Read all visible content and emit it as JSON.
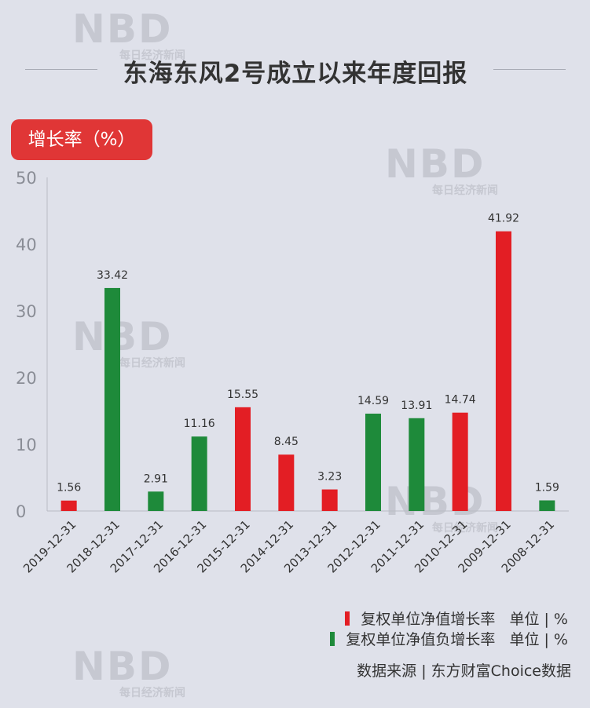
{
  "title": "东海东风2号成立以来年度回报",
  "badge_label": "增长率（%）",
  "watermark": {
    "logo": "NBD",
    "sub": "每日经济新闻"
  },
  "colors": {
    "positive": "#e31e24",
    "negative": "#1e8a3a",
    "badge": "#e03636"
  },
  "legend": [
    {
      "label": "复权单位净值增长率",
      "unit": "单位 | %",
      "color": "#e31e24"
    },
    {
      "label": "复权单位净值负增长率",
      "unit": "单位 | %",
      "color": "#1e8a3a"
    }
  ],
  "source": "数据来源 | 东方财富Choice数据",
  "chart_data": {
    "type": "bar",
    "categories": [
      "2019-12-31",
      "2018-12-31",
      "2017-12-31",
      "2016-12-31",
      "2015-12-31",
      "2014-12-31",
      "2013-12-31",
      "2012-12-31",
      "2011-12-31",
      "2010-12-31",
      "2009-12-31",
      "2008-12-31"
    ],
    "values": [
      1.56,
      33.42,
      2.91,
      11.16,
      15.55,
      8.45,
      3.23,
      14.59,
      13.91,
      14.74,
      41.92,
      1.59
    ],
    "value_labels": [
      "1.56",
      "33.42",
      "2.91",
      "11.16",
      "15.55",
      "8.45",
      "3.23",
      "14.59",
      "13.91",
      "14.74",
      "41.92",
      "1.59"
    ],
    "bar_colors": [
      "#e31e24",
      "#1e8a3a",
      "#1e8a3a",
      "#1e8a3a",
      "#e31e24",
      "#e31e24",
      "#e31e24",
      "#1e8a3a",
      "#1e8a3a",
      "#e31e24",
      "#e31e24",
      "#1e8a3a"
    ],
    "ylim": [
      0,
      50
    ],
    "yticks": [
      0,
      10,
      20,
      30,
      40,
      50
    ],
    "grid": false
  }
}
